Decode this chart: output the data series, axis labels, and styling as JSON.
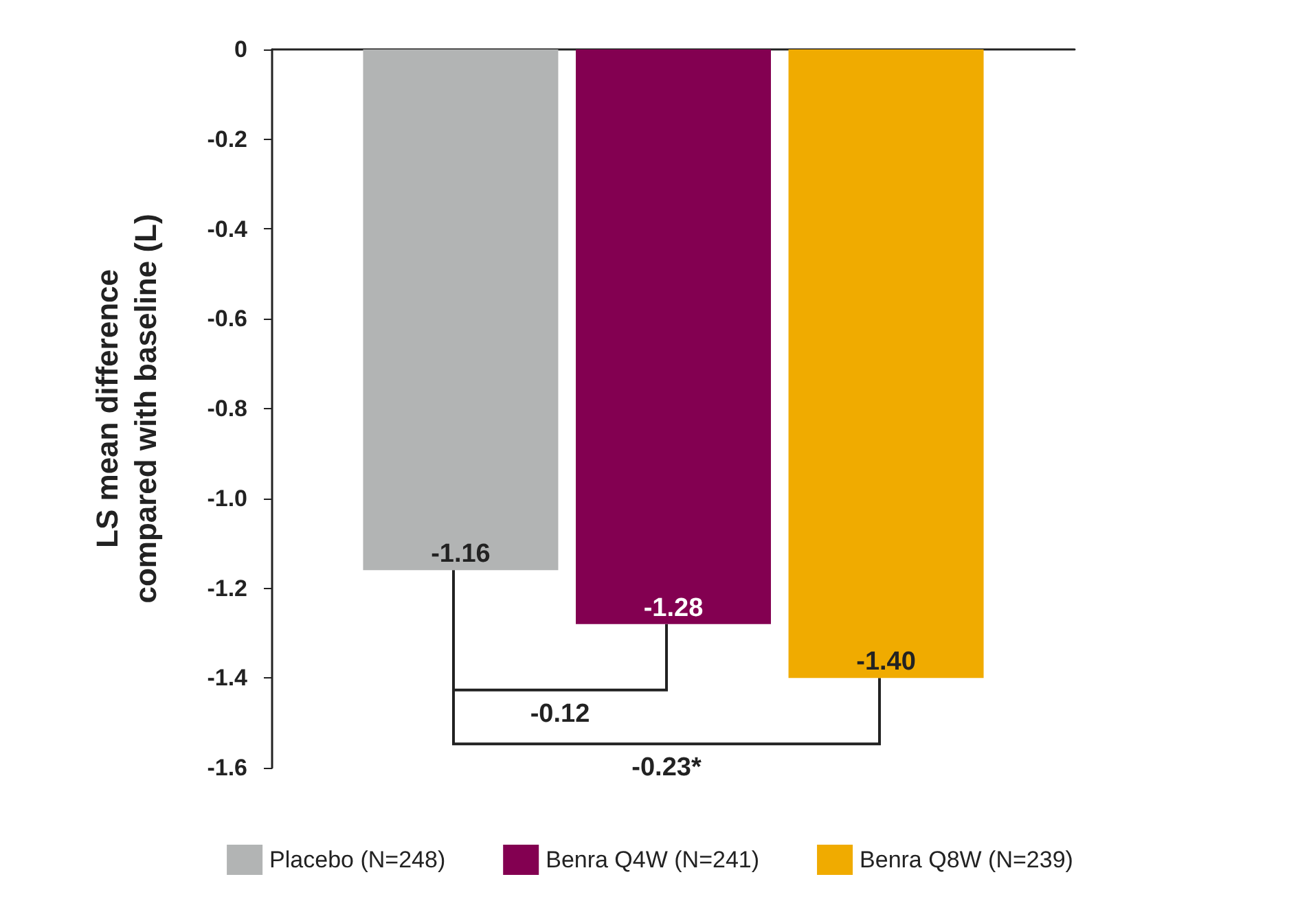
{
  "chart_data": {
    "type": "bar",
    "ylabel": "LS mean difference\ncompared with baseline (L)",
    "categories": [
      null
    ],
    "series": [
      {
        "name": "Placebo (N=248)",
        "color": "#b2b4b4",
        "values": [
          -1.16
        ],
        "value_labels": [
          "-1.16"
        ]
      },
      {
        "name": "Benra Q4W (N=241)",
        "color": "#830051",
        "values": [
          -1.28
        ],
        "value_labels": [
          "-1.28"
        ]
      },
      {
        "name": "Benra Q8W (N=239)",
        "color": "#f0ab00",
        "values": [
          -1.4
        ],
        "value_labels": [
          "-1.40"
        ]
      }
    ],
    "ylim": [
      -1.6,
      0
    ],
    "yticks": [
      -1.6,
      -1.4,
      -1.2,
      {
        "value": -1,
        "label": "-1.0"
      },
      -0.8,
      -0.6,
      -0.4,
      -0.2,
      0
    ],
    "grid": false,
    "legend": "bottom",
    "annotations": [
      "-0.12",
      "-0.23*"
    ]
  }
}
